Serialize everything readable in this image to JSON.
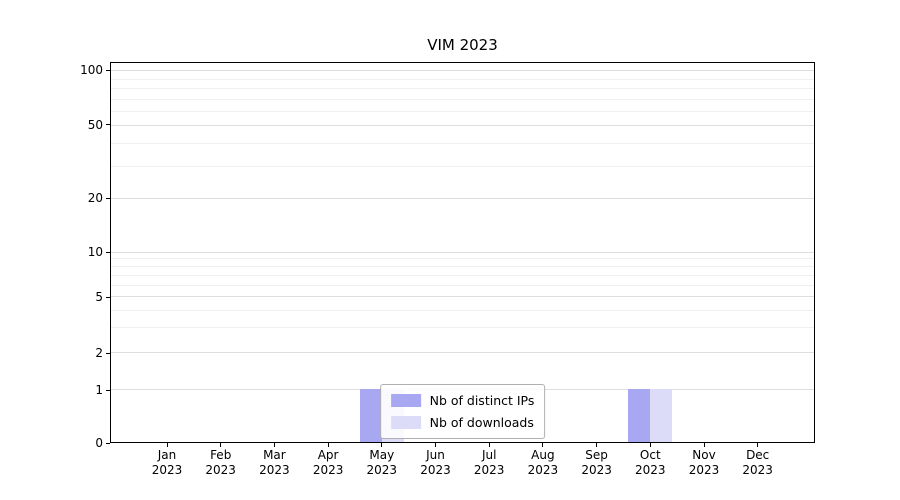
{
  "chart_data": {
    "type": "bar",
    "title": "VIM 2023",
    "x_tick_months": [
      "Jan",
      "Feb",
      "Mar",
      "Apr",
      "May",
      "Jun",
      "Jul",
      "Aug",
      "Sep",
      "Oct",
      "Nov",
      "Dec"
    ],
    "x_tick_year": "2023",
    "categories": [
      "Jan 2023",
      "Feb 2023",
      "Mar 2023",
      "Apr 2023",
      "May 2023",
      "Jun 2023",
      "Jul 2023",
      "Aug 2023",
      "Sep 2023",
      "Oct 2023",
      "Nov 2023",
      "Dec 2023"
    ],
    "series": [
      {
        "name": "Nb of distinct IPs",
        "color": "#a7a7f2",
        "values": [
          0,
          0,
          0,
          0,
          1,
          0,
          0,
          0,
          0,
          1,
          0,
          0
        ]
      },
      {
        "name": "Nb of downloads",
        "color": "#dcdcf9",
        "values": [
          0,
          0,
          0,
          0,
          1,
          0,
          0,
          0,
          0,
          1,
          0,
          0
        ]
      }
    ],
    "y_scale": "symlog",
    "y_major_ticks": [
      0,
      1,
      2,
      5,
      10,
      20,
      50,
      100
    ],
    "y_minor_ticks": [
      3,
      4,
      6,
      7,
      8,
      9,
      30,
      40,
      60,
      70,
      80,
      90
    ],
    "ylim": [
      0,
      110
    ],
    "grid": "horizontal",
    "legend": {
      "position": "lower center"
    },
    "colors": {
      "axis": "#000000",
      "grid_major": "#dedede",
      "grid_minor": "#efefef",
      "background": "#ffffff"
    }
  }
}
